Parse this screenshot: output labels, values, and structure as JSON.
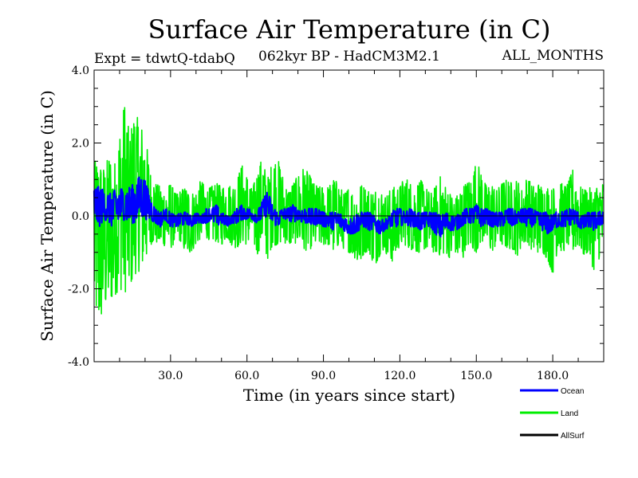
{
  "chart_data": {
    "type": "line",
    "title": "Surface Air Temperature (in C)",
    "subtitle_left": "Expt = tdwtQ-tdabQ",
    "subtitle_center": "062kyr BP - HadCM3M2.1",
    "subtitle_right": "ALL_MONTHS",
    "xlabel": "Time (in years since start)",
    "ylabel": "Surface Air Temperature (in C)",
    "xlim": [
      0,
      200
    ],
    "ylim": [
      -4.0,
      4.0
    ],
    "x_ticks": [
      30,
      60,
      90,
      120,
      150,
      180
    ],
    "x_tick_labels": [
      "30.0",
      "60.0",
      "90.0",
      "120.0",
      "150.0",
      "180.0"
    ],
    "y_ticks": [
      -4,
      -2,
      0,
      2,
      4
    ],
    "y_tick_labels": [
      "-4.0",
      "-2.0",
      "0.0",
      "2.0",
      "4.0"
    ],
    "zero_line": true,
    "series": [
      {
        "name": "Land",
        "color": "#00ee00",
        "x": [
          0,
          2,
          4,
          6,
          8,
          10,
          12,
          14,
          16,
          18,
          20,
          22,
          24,
          26,
          28,
          30,
          32,
          34,
          36,
          38,
          40,
          42,
          44,
          46,
          48,
          50,
          52,
          54,
          56,
          58,
          60,
          62,
          64,
          66,
          68,
          70,
          72,
          74,
          76,
          78,
          80,
          82,
          84,
          86,
          88,
          90,
          92,
          94,
          96,
          98,
          100,
          102,
          104,
          106,
          108,
          110,
          112,
          114,
          116,
          118,
          120,
          122,
          124,
          126,
          128,
          130,
          132,
          134,
          136,
          138,
          140,
          142,
          144,
          146,
          148,
          150,
          152,
          154,
          156,
          158,
          160,
          162,
          164,
          166,
          168,
          170,
          172,
          174,
          176,
          178,
          180,
          182,
          184,
          186,
          188,
          190,
          192,
          194,
          196,
          198,
          200
        ],
        "max": [
          1.5,
          1.5,
          1.3,
          1.7,
          1.4,
          2.3,
          3.1,
          2.2,
          2.9,
          2.5,
          2.3,
          1.2,
          0.9,
          0.8,
          0.7,
          0.9,
          0.6,
          0.7,
          0.8,
          0.6,
          0.7,
          1.0,
          0.7,
          0.8,
          0.9,
          0.8,
          0.9,
          0.8,
          1.0,
          1.4,
          1.1,
          0.7,
          1.2,
          1.6,
          1.0,
          1.5,
          1.6,
          1.1,
          0.7,
          0.9,
          1.1,
          1.3,
          1.2,
          0.9,
          0.8,
          0.8,
          0.8,
          1.0,
          0.9,
          0.6,
          0.8,
          0.6,
          0.9,
          0.8,
          0.7,
          0.7,
          0.8,
          0.5,
          0.7,
          0.8,
          0.8,
          1.1,
          0.9,
          0.8,
          1.0,
          0.8,
          0.6,
          0.8,
          1.1,
          0.8,
          0.6,
          0.5,
          0.8,
          0.9,
          1.0,
          1.5,
          1.2,
          0.8,
          0.9,
          0.7,
          0.9,
          1.0,
          0.9,
          1.0,
          0.7,
          1.1,
          0.8,
          0.9,
          0.8,
          0.8,
          0.7,
          1.2,
          0.8,
          0.9,
          1.3,
          0.9,
          0.7,
          0.8,
          0.7,
          0.9,
          0.9
        ],
        "min": [
          -2.6,
          -3.0,
          -2.6,
          -2.4,
          -2.2,
          -2.0,
          -2.1,
          -2.0,
          -1.6,
          -1.5,
          -1.3,
          -0.8,
          -0.7,
          -0.9,
          -0.8,
          -0.9,
          -0.7,
          -0.7,
          -1.1,
          -1.0,
          -0.8,
          -0.6,
          -0.6,
          -0.7,
          -0.7,
          -0.8,
          -0.6,
          -0.8,
          -0.9,
          -0.7,
          -0.8,
          -0.6,
          -1.1,
          -0.7,
          -1.2,
          -0.8,
          -0.8,
          -0.7,
          -0.8,
          -0.8,
          -0.7,
          -1.0,
          -0.9,
          -0.9,
          -0.8,
          -0.8,
          -0.8,
          -1.0,
          -0.8,
          -0.9,
          -1.0,
          -1.1,
          -1.5,
          -1.0,
          -1.0,
          -1.4,
          -1.1,
          -0.9,
          -1.3,
          -1.2,
          -0.8,
          -0.8,
          -0.9,
          -1.0,
          -1.0,
          -0.9,
          -1.0,
          -1.0,
          -1.1,
          -1.0,
          -1.2,
          -1.0,
          -1.5,
          -0.8,
          -0.9,
          -1.0,
          -0.7,
          -0.8,
          -1.0,
          -0.8,
          -0.8,
          -0.9,
          -0.9,
          -1.1,
          -0.8,
          -0.7,
          -1.0,
          -1.0,
          -1.0,
          -1.2,
          -1.6,
          -0.9,
          -1.0,
          -0.8,
          -1.0,
          -0.8,
          -1.1,
          -1.0,
          -1.5,
          -1.2,
          -1.0
        ]
      },
      {
        "name": "Ocean",
        "color": "#0000ff",
        "x": [
          0,
          2,
          4,
          6,
          8,
          10,
          12,
          14,
          16,
          18,
          20,
          22,
          24,
          26,
          28,
          30,
          32,
          34,
          36,
          38,
          40,
          42,
          44,
          46,
          48,
          50,
          52,
          54,
          56,
          58,
          60,
          62,
          64,
          66,
          68,
          70,
          72,
          74,
          76,
          78,
          80,
          82,
          84,
          86,
          88,
          90,
          92,
          94,
          96,
          98,
          100,
          102,
          104,
          106,
          108,
          110,
          112,
          114,
          116,
          118,
          120,
          122,
          124,
          126,
          128,
          130,
          132,
          134,
          136,
          138,
          140,
          142,
          144,
          146,
          148,
          150,
          152,
          154,
          156,
          158,
          160,
          162,
          164,
          166,
          168,
          170,
          172,
          174,
          176,
          178,
          180,
          182,
          184,
          186,
          188,
          190,
          192,
          194,
          196,
          198,
          200
        ],
        "max": [
          0.8,
          0.8,
          0.7,
          0.6,
          0.7,
          0.8,
          0.7,
          0.8,
          0.9,
          1.1,
          1.0,
          0.5,
          0.2,
          0.1,
          0.2,
          0.1,
          0.0,
          0.1,
          0.1,
          0.0,
          0.1,
          0.0,
          0.2,
          0.2,
          0.3,
          0.1,
          0.0,
          0.0,
          0.2,
          0.3,
          0.2,
          0.2,
          0.1,
          0.4,
          0.7,
          0.3,
          0.1,
          0.2,
          0.2,
          0.3,
          0.2,
          0.2,
          0.2,
          0.2,
          0.2,
          0.1,
          0.1,
          0.1,
          0.1,
          0.0,
          -0.1,
          0.0,
          0.1,
          0.1,
          0.1,
          0.0,
          -0.1,
          -0.1,
          0.0,
          0.2,
          0.2,
          0.1,
          0.2,
          0.1,
          0.1,
          0.1,
          0.1,
          0.1,
          0.0,
          0.1,
          0.0,
          0.0,
          0.1,
          0.2,
          0.2,
          0.3,
          0.2,
          0.2,
          0.1,
          0.1,
          0.1,
          0.2,
          0.2,
          0.1,
          0.2,
          0.2,
          0.2,
          0.1,
          0.1,
          0.1,
          0.0,
          0.2,
          0.1,
          0.2,
          0.2,
          0.1,
          0.0,
          0.1,
          0.1,
          0.1,
          0.2
        ],
        "min": [
          -0.1,
          -0.3,
          -0.1,
          -0.2,
          -0.4,
          -0.2,
          -0.1,
          -0.2,
          -0.2,
          0.0,
          -0.1,
          -0.1,
          -0.2,
          -0.3,
          -0.1,
          -0.3,
          -0.3,
          -0.3,
          -0.2,
          -0.3,
          -0.2,
          -0.2,
          -0.2,
          -0.1,
          -0.3,
          -0.2,
          -0.3,
          -0.2,
          -0.2,
          -0.1,
          -0.1,
          -0.1,
          -0.2,
          -0.1,
          0.0,
          -0.2,
          -0.3,
          -0.1,
          -0.1,
          -0.2,
          -0.1,
          -0.2,
          -0.2,
          -0.3,
          -0.2,
          -0.3,
          -0.3,
          -0.4,
          -0.3,
          -0.4,
          -0.5,
          -0.5,
          -0.4,
          -0.3,
          -0.4,
          -0.4,
          -0.5,
          -0.4,
          -0.3,
          -0.3,
          -0.3,
          -0.2,
          -0.3,
          -0.3,
          -0.4,
          -0.3,
          -0.3,
          -0.5,
          -0.6,
          -0.4,
          -0.4,
          -0.4,
          -0.3,
          -0.2,
          -0.2,
          -0.2,
          -0.3,
          -0.2,
          -0.3,
          -0.3,
          -0.3,
          -0.2,
          -0.3,
          -0.2,
          -0.2,
          -0.3,
          -0.3,
          -0.3,
          -0.4,
          -0.5,
          -0.4,
          -0.3,
          -0.3,
          -0.3,
          -0.2,
          -0.3,
          -0.4,
          -0.3,
          -0.4,
          -0.3,
          -0.2
        ]
      },
      {
        "name": "AllSurf",
        "color": "#000000",
        "x": [
          0,
          200
        ],
        "y": [
          0.0,
          0.0
        ]
      }
    ],
    "legend": [
      "Ocean",
      "Land",
      "AllSurf"
    ],
    "legend_position": "bottom-right"
  }
}
